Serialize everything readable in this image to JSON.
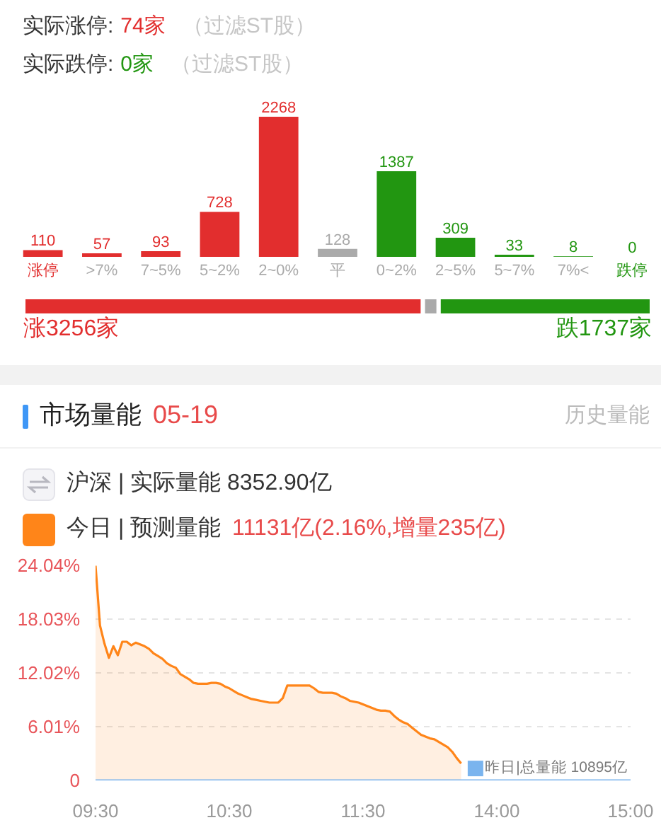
{
  "chart_data": [
    {
      "type": "bar",
      "annotations": [
        "实际涨停:",
        "74家",
        "（过滤ST股）",
        "实际跌停:",
        "0家",
        "（过滤ST股）"
      ],
      "categories": [
        "涨停",
        ">7%",
        "7~5%",
        "5~2%",
        "2~0%",
        "平",
        "0~2%",
        "2~5%",
        "5~7%",
        "7%<",
        "跌停"
      ],
      "values": [
        110,
        57,
        93,
        728,
        2268,
        128,
        1387,
        309,
        33,
        8,
        0
      ],
      "colors": [
        "#e22e2e",
        "#e22e2e",
        "#e22e2e",
        "#e22e2e",
        "#e22e2e",
        "#aaaaaa",
        "#229611",
        "#229611",
        "#229611",
        "#229611",
        "#229611"
      ],
      "data_labels": true,
      "tick_labels": "x"
    },
    {
      "type": "bar",
      "orientation": "horizontal",
      "stacked": true,
      "categories": [
        null
      ],
      "tick_labels": false,
      "series": [
        {
          "color": "#e22e2e",
          "values": [
            3256
          ],
          "value_labels": [
            "涨3256家"
          ]
        },
        {
          "color": "#aaaaaa",
          "values": [
            128
          ]
        },
        {
          "color": "#229611",
          "values": [
            1737
          ],
          "value_labels": [
            "跌1737家"
          ]
        }
      ]
    },
    {
      "type": "area",
      "title": "市场量能",
      "subtitle": "05-19",
      "annotations": [
        "历史量能",
        "沪深 | 实际量能 8352.90亿",
        "11131亿(2.16%,增量235亿)"
      ],
      "categories": [
        "09:30",
        null,
        null,
        null,
        null,
        null,
        null,
        null,
        null,
        null,
        null,
        null,
        null,
        null,
        null,
        null,
        null,
        null,
        null,
        null,
        null,
        null,
        null,
        null,
        null,
        null,
        null,
        null,
        null,
        null,
        "10:30",
        null,
        null,
        null,
        null,
        null,
        null,
        null,
        null,
        null,
        null,
        null,
        null,
        null,
        null,
        null,
        null,
        null,
        null,
        null,
        null,
        null,
        null,
        null,
        null,
        null,
        null,
        null,
        null,
        null,
        "11:30",
        null,
        null,
        null,
        null,
        null,
        null,
        null,
        null,
        null,
        null,
        null,
        null,
        null,
        null,
        null,
        null,
        null,
        null,
        null,
        null,
        null,
        null,
        null,
        null,
        null,
        null,
        null,
        null,
        null,
        "14:00",
        null,
        null,
        null,
        null,
        null,
        null,
        null,
        null,
        null,
        null,
        null,
        null,
        null,
        null,
        null,
        null,
        null,
        null,
        null,
        null,
        null,
        null,
        null,
        null,
        null,
        null,
        null,
        null,
        null,
        "15:00"
      ],
      "series": [
        {
          "name": "今日 | 预测量能",
          "color": "#ff8519",
          "values": [
            24.0,
            17.3,
            15.3,
            13.7,
            15.0,
            14.0,
            15.5,
            15.5,
            15.1,
            15.4,
            15.2,
            15.0,
            14.7,
            14.2,
            13.9,
            13.6,
            13.1,
            12.8,
            12.6,
            11.9,
            11.6,
            11.3,
            10.9,
            10.8,
            10.8,
            10.8,
            10.9,
            10.9,
            10.8,
            10.5,
            10.3,
            10.0,
            9.7,
            9.5,
            9.3,
            9.1,
            9.0,
            8.9,
            8.8,
            8.7,
            8.7,
            8.7,
            9.2,
            10.6,
            10.6,
            10.6,
            10.6,
            10.6,
            10.6,
            10.3,
            9.9,
            9.8,
            9.8,
            9.8,
            9.7,
            9.4,
            9.2,
            8.9,
            8.8,
            8.7,
            8.5,
            8.3,
            8.1,
            7.9,
            7.8,
            7.8,
            7.7,
            7.2,
            6.8,
            6.5,
            6.3,
            5.9,
            5.5,
            5.1,
            4.9,
            4.7,
            4.6,
            4.3,
            4.0,
            3.7,
            3.2,
            2.5,
            1.9,
            null,
            null,
            null,
            null,
            null,
            null,
            null,
            null,
            null,
            null,
            null,
            null,
            null,
            null,
            null,
            null,
            null,
            null,
            null,
            null,
            null,
            null,
            null,
            null,
            null,
            null,
            null,
            null,
            null,
            null,
            null,
            null,
            null,
            null,
            null,
            null,
            null,
            null
          ]
        },
        {
          "name": "昨日|总量能 10895亿",
          "type": "line",
          "color": "#7ab4ee",
          "values": [
            0,
            0,
            0,
            0,
            0,
            0,
            0,
            0,
            0,
            0,
            0,
            0,
            0,
            0,
            0,
            0,
            0,
            0,
            0,
            0,
            0,
            0,
            0,
            0,
            0,
            0,
            0,
            0,
            0,
            0,
            0,
            0,
            0,
            0,
            0,
            0,
            0,
            0,
            0,
            0,
            0,
            0,
            0,
            0,
            0,
            0,
            0,
            0,
            0,
            0,
            0,
            0,
            0,
            0,
            0,
            0,
            0,
            0,
            0,
            0,
            0,
            0,
            0,
            0,
            0,
            0,
            0,
            0,
            0,
            0,
            0,
            0,
            0,
            0,
            0,
            0,
            0,
            0,
            0,
            0,
            0,
            0,
            0,
            0,
            0,
            0,
            0,
            0,
            0,
            0,
            0,
            0,
            0,
            0,
            0,
            0,
            0,
            0,
            0,
            0,
            0,
            0,
            0,
            0,
            0,
            0,
            0,
            0,
            0,
            0,
            0,
            0,
            0,
            0,
            0,
            0,
            0,
            0,
            0,
            0,
            0
          ]
        }
      ],
      "ylim": [
        0,
        24.04
      ],
      "yticks": [
        0,
        {
          "value": 6.01,
          "label": "6.01%"
        },
        {
          "value": 12.02,
          "label": "12.02%"
        },
        {
          "value": 18.03,
          "label": "18.03%"
        },
        {
          "value": 24.04,
          "label": "24.04%"
        }
      ],
      "grid": "y",
      "legend": "top left"
    }
  ]
}
